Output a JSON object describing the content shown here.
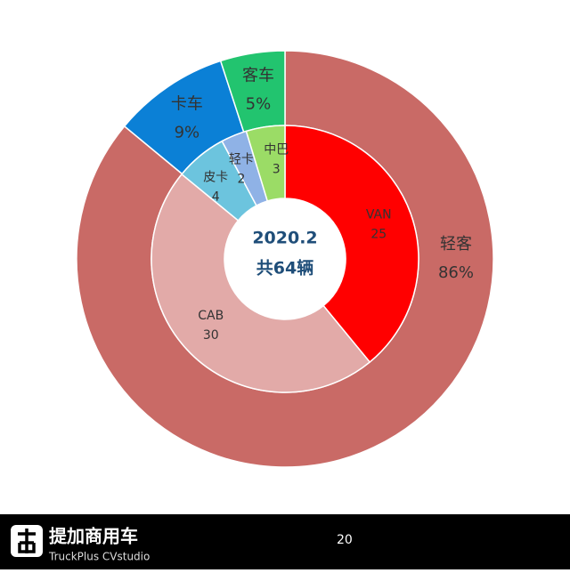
{
  "chart_data": {
    "type": "nested-donut",
    "center_title": "2020.2",
    "center_subtitle": "共64辆",
    "rings": [
      {
        "categories": [
          "轻客",
          "卡车",
          "客车"
        ],
        "values": [
          86,
          9,
          5
        ],
        "value_labels": [
          "86%",
          "9%",
          "5%"
        ],
        "colors": [
          "#c96a66",
          "#0b80d6",
          "#22c46f"
        ]
      },
      {
        "categories": [
          "VAN",
          "CAB",
          "皮卡",
          "轻卡",
          "中巴"
        ],
        "values": [
          25,
          30,
          4,
          2,
          3
        ],
        "colors": [
          "#ff0000",
          "#e2aaa8",
          "#6cc4de",
          "#8fb2e6",
          "#9bdc66"
        ]
      }
    ]
  },
  "footer": {
    "brand": "提加商用车",
    "brand_en": "TruckPlus CVstudio",
    "text": "20"
  }
}
